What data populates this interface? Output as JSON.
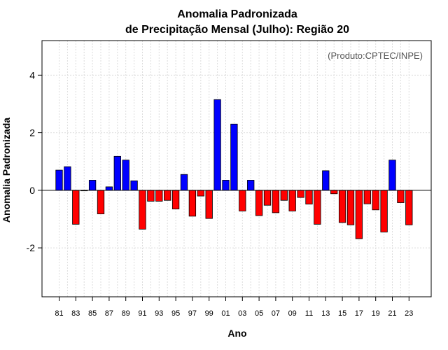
{
  "chart_data": {
    "type": "bar",
    "title": "Anomalia Padronizada",
    "subtitle": "de Precipitação Mensal (Julho): Região 20",
    "xlabel": "Ano",
    "ylabel": "Anomalia Padronizada",
    "annotation": "(Produto:CPTEC/INPE)",
    "ylim": [
      -3.7,
      5.2
    ],
    "yticks": [
      -2,
      0,
      2,
      4
    ],
    "grid": true,
    "legend": "none",
    "colors": {
      "positive": "#0000ff",
      "negative": "#ff0000"
    },
    "categories": [
      "81",
      "82",
      "83",
      "84",
      "85",
      "86",
      "87",
      "88",
      "89",
      "90",
      "91",
      "92",
      "93",
      "94",
      "95",
      "96",
      "97",
      "98",
      "99",
      "00",
      "01",
      "02",
      "03",
      "04",
      "05",
      "06",
      "07",
      "08",
      "09",
      "10",
      "11",
      "12",
      "13",
      "14",
      "15",
      "16",
      "17",
      "18",
      "19",
      "20",
      "21",
      "22",
      "23"
    ],
    "xtick_labels": [
      "81",
      "83",
      "85",
      "87",
      "89",
      "91",
      "93",
      "95",
      "97",
      "99",
      "01",
      "03",
      "05",
      "07",
      "09",
      "11",
      "13",
      "15",
      "17",
      "19",
      "21",
      "23"
    ],
    "values": [
      0.7,
      0.82,
      -1.18,
      -0.02,
      0.35,
      -0.82,
      0.12,
      1.18,
      1.05,
      0.33,
      -1.35,
      -0.38,
      -0.38,
      -0.35,
      -0.65,
      0.55,
      -0.9,
      -0.2,
      -0.98,
      3.15,
      0.35,
      2.3,
      -0.72,
      0.35,
      -0.88,
      -0.52,
      -0.78,
      -0.35,
      -0.72,
      -0.25,
      -0.48,
      -1.18,
      0.68,
      -0.12,
      -1.12,
      -1.2,
      -1.68,
      -0.47,
      -0.68,
      -1.45,
      1.05,
      -0.43,
      -1.2
    ]
  }
}
